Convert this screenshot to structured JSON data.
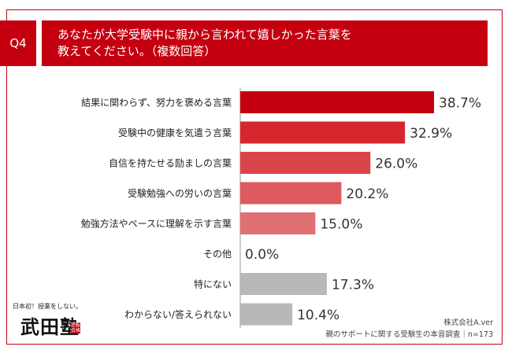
{
  "header": {
    "badge": "Q4",
    "title_line1": "あなたが大学受験中に親から言われて嬉しかった言葉を",
    "title_line2": "教えてください。（複数回答）"
  },
  "chart_data": {
    "type": "bar",
    "orientation": "horizontal",
    "categories": [
      "結果に関わらず、努力を褒める言葉",
      "受験中の健康を気遣う言葉",
      "自信を持たせる励ましの言葉",
      "受験勉強への労いの言葉",
      "勉強方法やペースに理解を示す言葉",
      "その他",
      "特にない",
      "わからない/答えられない"
    ],
    "values": [
      38.7,
      32.9,
      26.0,
      20.2,
      15.0,
      0.0,
      17.3,
      10.4
    ],
    "value_labels": [
      "38.7%",
      "32.9%",
      "26.0%",
      "20.2%",
      "15.0%",
      "0.0%",
      "17.3%",
      "10.4%"
    ],
    "colors": [
      "#c40010",
      "#d5262e",
      "#d9454a",
      "#dd5a5f",
      "#e07074",
      "#e07074",
      "#b8b8b8",
      "#b8b8b8"
    ],
    "xlim": [
      0,
      45
    ],
    "grid": false,
    "legend": false
  },
  "logo": {
    "tagline": "日本初！授業をしない。",
    "name": "武田塾",
    "stamp": "逆転合格"
  },
  "source": {
    "company": "株式会社A.ver",
    "survey": "親のサポートに関する受験生の本音調査｜n=173"
  }
}
